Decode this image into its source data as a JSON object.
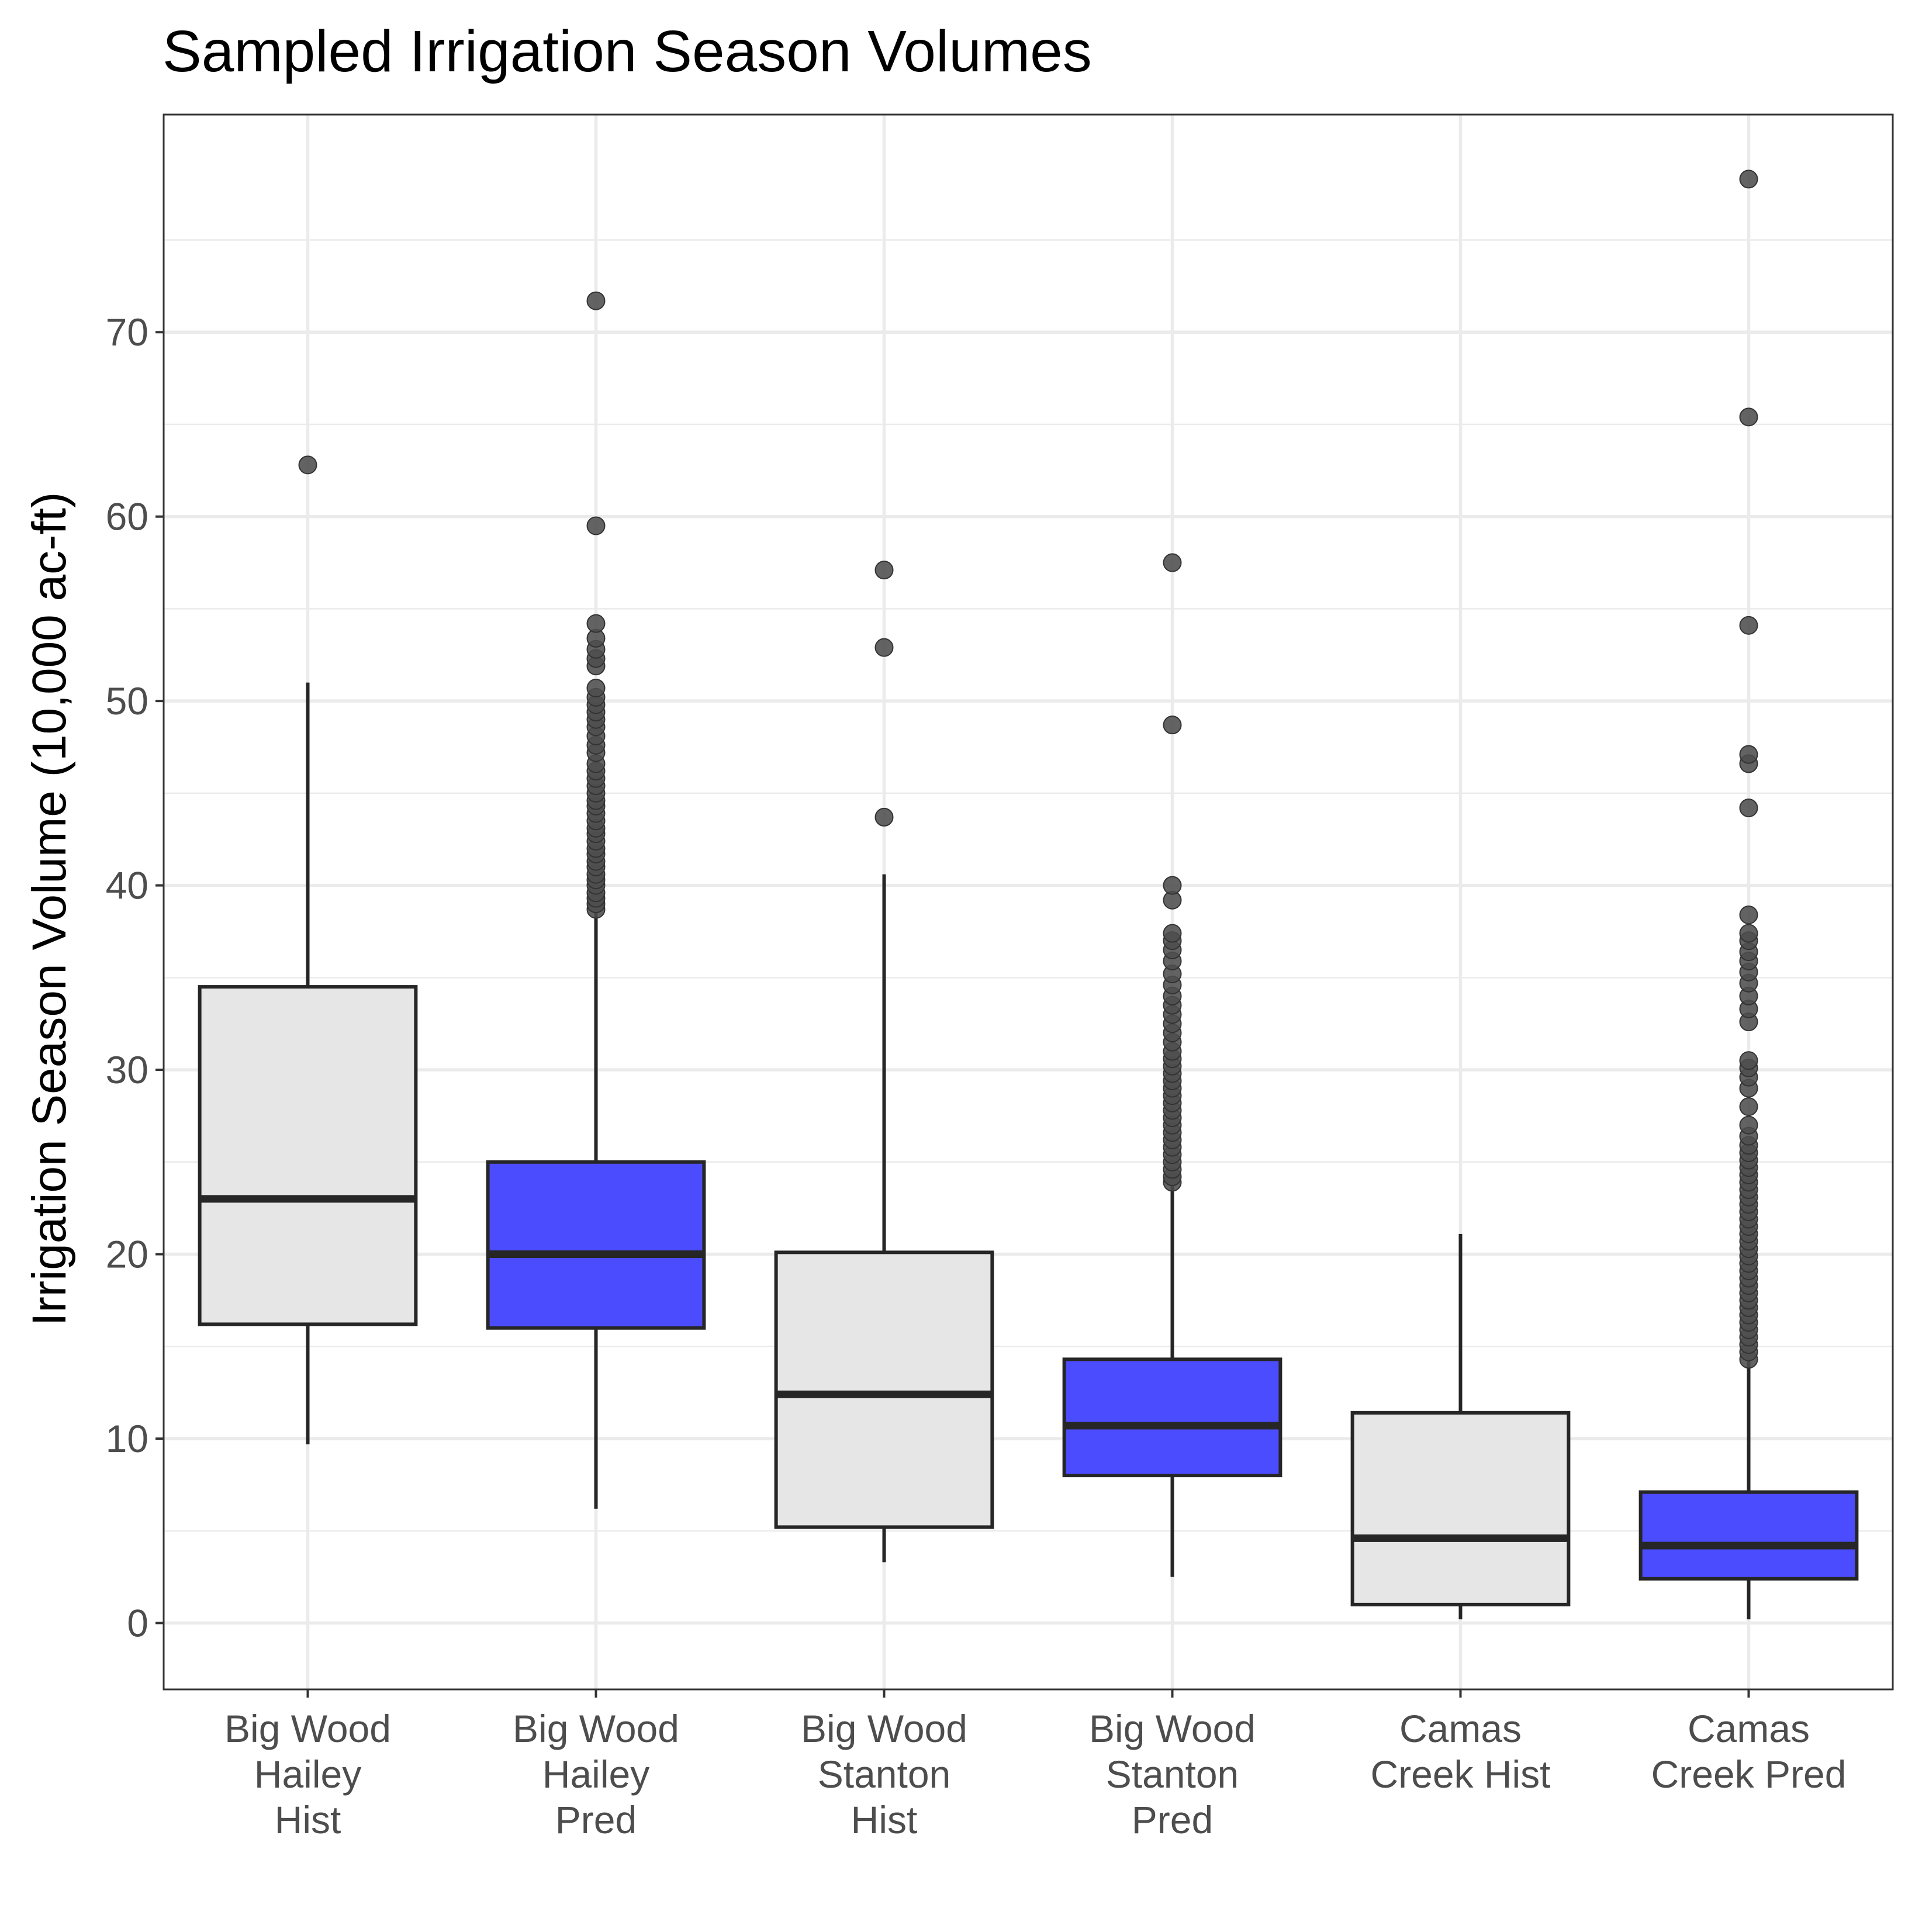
{
  "chart_data": {
    "type": "box",
    "title": "Sampled Irrigation Season Volumes",
    "xlabel": "",
    "ylabel": "Irrigation Season Volume (10,000 ac-ft)",
    "ylim": [
      -3.6,
      81.8
    ],
    "y_ticks": [
      0,
      10,
      20,
      30,
      40,
      50,
      60,
      70
    ],
    "grid": true,
    "legend": "none",
    "colors": {
      "hist": "#e6e6e6",
      "pred": "#4c4cff",
      "stroke": "#262626",
      "outlier": "#4d4d4d",
      "grid": "#ebebeb"
    },
    "categories": [
      [
        "Big Wood",
        "Hailey",
        "Hist"
      ],
      [
        "Big Wood",
        "Hailey",
        "Pred"
      ],
      [
        "Big Wood",
        "Stanton",
        "Hist"
      ],
      [
        "Big Wood",
        "Stanton",
        "Pred"
      ],
      [
        "Camas",
        "Creek Hist"
      ],
      [
        "Camas",
        "Creek Pred"
      ]
    ],
    "boxes": [
      {
        "group": "Hist",
        "whisker_low": 9.7,
        "q1": 16.2,
        "median": 23.0,
        "q3": 34.5,
        "whisker_high": 51.0,
        "outliers": [
          62.8
        ]
      },
      {
        "group": "Pred",
        "whisker_low": 6.2,
        "q1": 16.0,
        "median": 20.0,
        "q3": 25.0,
        "whisker_high": 38.5,
        "outliers": [
          38.7,
          39.0,
          39.3,
          39.6,
          40.0,
          40.3,
          40.6,
          41.0,
          41.3,
          41.7,
          42.0,
          42.4,
          42.8,
          43.1,
          43.5,
          43.9,
          44.3,
          44.6,
          45.0,
          45.4,
          45.8,
          46.2,
          46.6,
          47.2,
          47.6,
          48.1,
          48.6,
          49.0,
          49.4,
          49.8,
          50.2,
          50.7,
          51.9,
          52.3,
          52.8,
          53.4,
          54.2,
          59.5,
          71.7
        ]
      },
      {
        "group": "Hist",
        "whisker_low": 3.3,
        "q1": 5.2,
        "median": 12.4,
        "q3": 20.1,
        "whisker_high": 40.6,
        "outliers": [
          43.7,
          52.9,
          57.1
        ]
      },
      {
        "group": "Pred",
        "whisker_low": 2.5,
        "q1": 8.0,
        "median": 10.7,
        "q3": 14.3,
        "whisker_high": 23.7,
        "outliers": [
          23.9,
          24.2,
          24.6,
          25.0,
          25.4,
          25.8,
          26.2,
          26.6,
          27.0,
          27.4,
          27.8,
          28.2,
          28.6,
          29.0,
          29.4,
          29.8,
          30.2,
          30.6,
          31.0,
          31.5,
          32.0,
          32.5,
          33.0,
          33.5,
          34.0,
          34.6,
          35.2,
          35.9,
          36.5,
          37.0,
          37.4,
          39.2,
          40.0,
          48.7,
          57.5
        ]
      },
      {
        "group": "Hist",
        "whisker_low": 0.2,
        "q1": 1.0,
        "median": 4.6,
        "q3": 11.4,
        "whisker_high": 21.1,
        "outliers": []
      },
      {
        "group": "Pred",
        "whisker_low": 0.2,
        "q1": 2.4,
        "median": 4.2,
        "q3": 7.1,
        "whisker_high": 14.2,
        "outliers": [
          14.3,
          14.7,
          15.1,
          15.5,
          15.9,
          16.3,
          16.7,
          17.1,
          17.5,
          17.9,
          18.3,
          18.7,
          19.1,
          19.5,
          19.9,
          20.3,
          20.7,
          21.1,
          21.5,
          21.9,
          22.3,
          22.7,
          23.1,
          23.5,
          23.9,
          24.3,
          24.7,
          25.1,
          25.5,
          25.9,
          26.4,
          27.0,
          28.0,
          29.0,
          29.6,
          30.1,
          30.5,
          32.6,
          33.3,
          34.0,
          34.7,
          35.3,
          35.9,
          36.4,
          37.0,
          37.4,
          38.4,
          44.2,
          46.6,
          47.1,
          54.1,
          65.4,
          78.3
        ]
      }
    ]
  }
}
